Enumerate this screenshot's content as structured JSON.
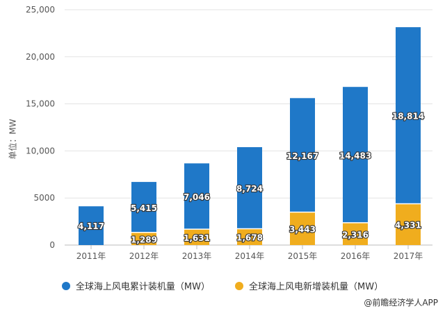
{
  "chart_data": {
    "type": "bar",
    "stacked": true,
    "categories": [
      "2011年",
      "2012年",
      "2013年",
      "2014年",
      "2015年",
      "2016年",
      "2017年"
    ],
    "series": [
      {
        "name": "全球海上风电累计装机量（MW）",
        "color": "#1f78c8",
        "values": [
          4117,
          5415,
          7046,
          8724,
          12167,
          14483,
          18814
        ]
      },
      {
        "name": "全球海上风电新增装机量（MW）",
        "color": "#f0ad1e",
        "values": [
          null,
          1289,
          1631,
          1678,
          3443,
          2316,
          4331
        ]
      }
    ],
    "ylabel": "单位：MW",
    "ylim": [
      0,
      25000
    ],
    "yticks": [
      "0",
      "5000",
      "10,000",
      "15,000",
      "20,000",
      "25,000"
    ],
    "grid": true,
    "legend": "bottom"
  },
  "credit": "@前瞻经济学人APP"
}
